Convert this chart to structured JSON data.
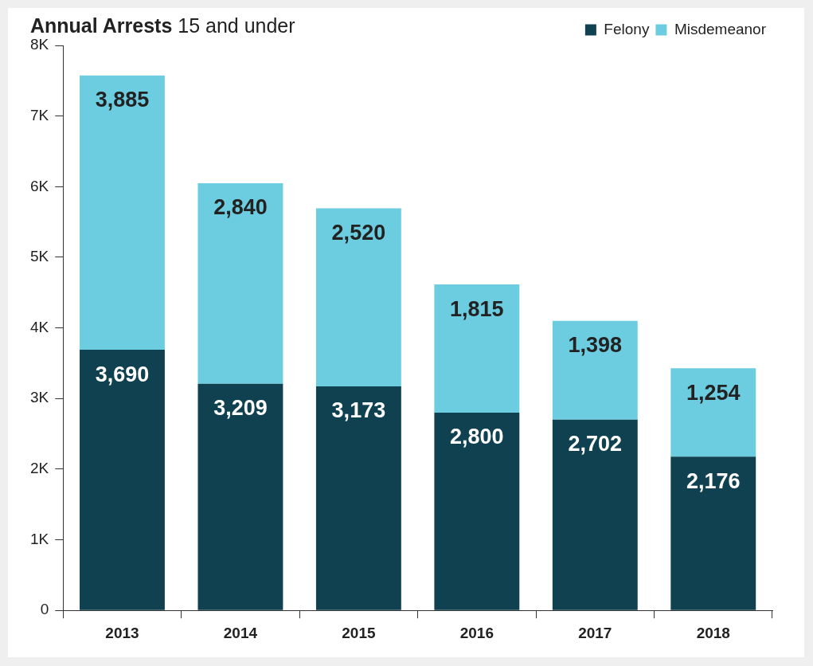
{
  "chart_data": {
    "type": "bar",
    "title": "Annual Arrests",
    "subtitle": "15 and under",
    "stacked": true,
    "categories": [
      "2013",
      "2014",
      "2015",
      "2016",
      "2017",
      "2018"
    ],
    "series": [
      {
        "name": "Felony",
        "color": "#0f4151",
        "values": [
          3690,
          3209,
          3173,
          2800,
          2702,
          2176
        ],
        "value_labels": [
          "3,690",
          "3,209",
          "3,173",
          "2,800",
          "2,702",
          "2,176"
        ]
      },
      {
        "name": "Misdemeanor",
        "color": "#6dcde0",
        "values": [
          3885,
          2840,
          2520,
          1815,
          1398,
          1254
        ],
        "value_labels": [
          "3,885",
          "2,840",
          "2,520",
          "1,815",
          "1,398",
          "1,254"
        ]
      }
    ],
    "ylim": [
      0,
      8000
    ],
    "yticks": [
      0,
      {
        "value": 1000,
        "label": "1K"
      },
      {
        "value": 2000,
        "label": "2K"
      },
      {
        "value": 3000,
        "label": "3K"
      },
      {
        "value": 4000,
        "label": "4K"
      },
      {
        "value": 5000,
        "label": "5K"
      },
      {
        "value": 6000,
        "label": "6K"
      },
      {
        "value": 7000,
        "label": "7K"
      },
      {
        "value": 8000,
        "label": "8K"
      }
    ],
    "grid": false,
    "legend": "top right"
  }
}
